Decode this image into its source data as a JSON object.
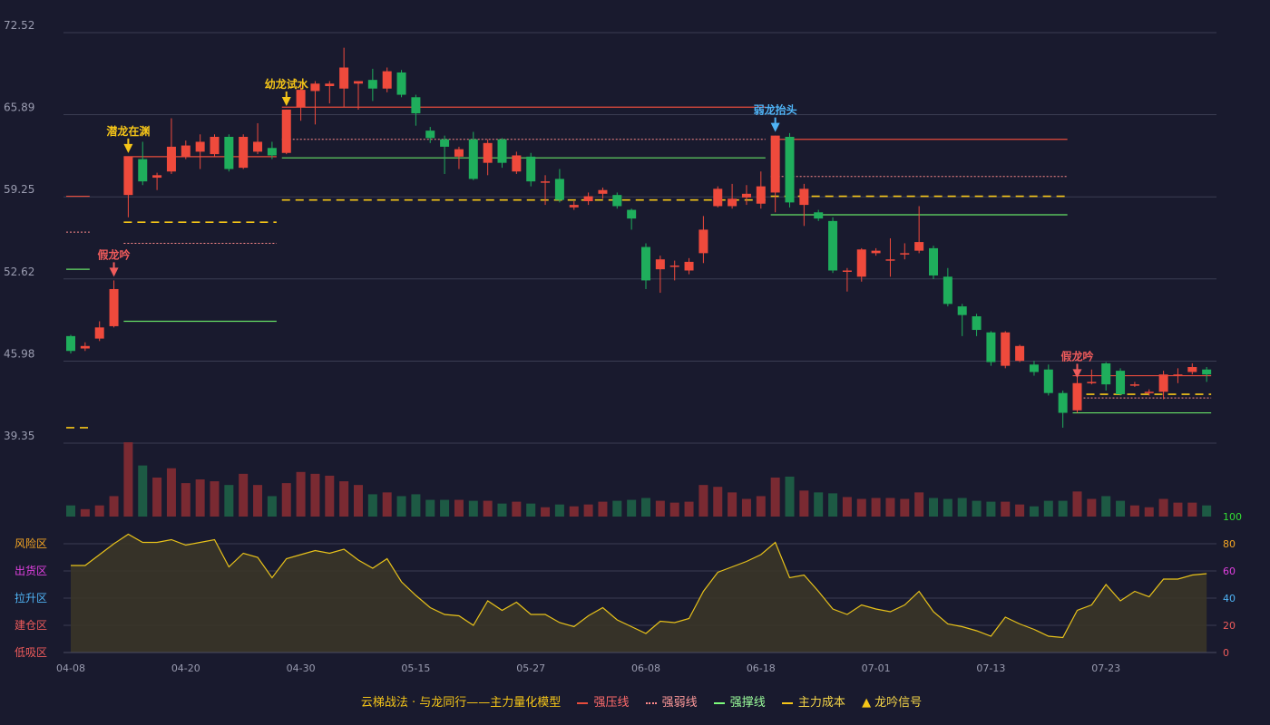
{
  "legend": {
    "title": "云梯战法 · 与龙同行——主力量化模型",
    "items": [
      {
        "label": "强压线",
        "color": "#e74c3c",
        "style": "solid"
      },
      {
        "label": "强弱线",
        "color": "#ff8a8a",
        "style": "dotted"
      },
      {
        "label": "强撑线",
        "color": "#7cfc7c",
        "style": "solid"
      },
      {
        "label": "主力成本",
        "color": "#f5c518",
        "style": "dashed"
      },
      {
        "label": "龙吟信号",
        "color": "#f5c518",
        "style": "triangle"
      }
    ]
  },
  "chart_data": {
    "type": "candlestick",
    "price_axis": {
      "ticks": [
        "72.52",
        "65.89",
        "59.25",
        "52.62",
        "45.98",
        "39.35"
      ],
      "ylim": [
        39.35,
        72.52
      ]
    },
    "x_ticks": [
      {
        "i": 0,
        "label": "04-08"
      },
      {
        "i": 8,
        "label": "04-20"
      },
      {
        "i": 16,
        "label": "04-30"
      },
      {
        "i": 24,
        "label": "05-15"
      },
      {
        "i": 32,
        "label": "05-27"
      },
      {
        "i": 40,
        "label": "06-08"
      },
      {
        "i": 48,
        "label": "06-18"
      },
      {
        "i": 56,
        "label": "07-01"
      },
      {
        "i": 64,
        "label": "07-13"
      },
      {
        "i": 72,
        "label": "07-23"
      }
    ],
    "candles": [
      [
        48.0,
        46.8,
        46.6,
        48.1
      ],
      [
        47.0,
        47.2,
        46.8,
        47.5
      ],
      [
        47.8,
        48.7,
        47.6,
        49.2
      ],
      [
        48.8,
        51.8,
        48.7,
        52.5
      ],
      [
        59.4,
        62.5,
        57.6,
        62.5
      ],
      [
        62.3,
        60.5,
        60.2,
        63.7
      ],
      [
        60.8,
        61.0,
        59.8,
        61.2
      ],
      [
        61.3,
        63.3,
        61.1,
        65.6
      ],
      [
        62.5,
        63.4,
        62.3,
        63.8
      ],
      [
        62.9,
        63.7,
        61.5,
        64.3
      ],
      [
        62.7,
        64.1,
        62.5,
        64.3
      ],
      [
        64.1,
        61.5,
        61.3,
        64.3
      ],
      [
        61.6,
        64.1,
        61.5,
        64.3
      ],
      [
        62.9,
        63.7,
        62.7,
        65.2
      ],
      [
        63.2,
        62.6,
        62.3,
        63.7
      ],
      [
        62.8,
        66.3,
        62.7,
        66.3
      ],
      [
        66.5,
        67.9,
        65.4,
        68.3
      ],
      [
        67.8,
        68.4,
        65.1,
        68.6
      ],
      [
        68.2,
        68.4,
        66.8,
        68.6
      ],
      [
        68.0,
        69.7,
        66.5,
        71.3
      ],
      [
        68.4,
        68.6,
        66.3,
        68.6
      ],
      [
        68.7,
        68.0,
        67.0,
        69.6
      ],
      [
        68.0,
        69.4,
        67.7,
        69.7
      ],
      [
        69.3,
        67.5,
        67.3,
        69.5
      ],
      [
        67.3,
        66.0,
        65.0,
        67.5
      ],
      [
        64.6,
        64.0,
        63.6,
        64.9
      ],
      [
        63.9,
        63.3,
        61.1,
        64.2
      ],
      [
        62.5,
        63.1,
        61.5,
        63.3
      ],
      [
        63.9,
        60.7,
        60.6,
        64.5
      ],
      [
        62.0,
        63.6,
        61.0,
        63.9
      ],
      [
        63.9,
        62.0,
        61.6,
        64.0
      ],
      [
        61.3,
        62.6,
        61.1,
        62.9
      ],
      [
        62.5,
        60.5,
        60.1,
        62.8
      ],
      [
        60.5,
        60.5,
        58.6,
        61.0
      ],
      [
        60.7,
        59.0,
        58.8,
        61.5
      ],
      [
        58.4,
        58.6,
        58.2,
        58.9
      ],
      [
        58.9,
        59.3,
        58.6,
        59.6
      ],
      [
        59.5,
        59.8,
        59.1,
        60.0
      ],
      [
        59.4,
        58.5,
        58.3,
        59.6
      ],
      [
        58.2,
        57.5,
        56.6,
        58.3
      ],
      [
        55.2,
        52.5,
        51.8,
        55.5
      ],
      [
        53.4,
        54.2,
        51.5,
        54.5
      ],
      [
        53.7,
        53.7,
        52.5,
        54.1
      ],
      [
        53.3,
        54.0,
        53.0,
        54.3
      ],
      [
        54.7,
        56.6,
        53.9,
        57.7
      ],
      [
        58.5,
        59.9,
        58.4,
        60.1
      ],
      [
        58.5,
        59.1,
        58.3,
        60.3
      ],
      [
        59.2,
        59.5,
        58.6,
        60.2
      ],
      [
        58.7,
        60.1,
        58.3,
        61.3
      ],
      [
        59.6,
        64.2,
        58.0,
        64.2
      ],
      [
        64.1,
        58.8,
        58.4,
        64.4
      ],
      [
        58.6,
        59.9,
        56.9,
        60.3
      ],
      [
        58.0,
        57.5,
        57.3,
        58.2
      ],
      [
        57.3,
        53.3,
        53.1,
        57.6
      ],
      [
        53.2,
        53.3,
        51.6,
        53.5
      ],
      [
        52.8,
        55.0,
        52.4,
        55.1
      ],
      [
        54.7,
        54.9,
        54.5,
        55.1
      ],
      [
        54.2,
        54.2,
        52.8,
        55.9
      ],
      [
        54.7,
        54.7,
        54.2,
        55.5
      ],
      [
        54.9,
        55.6,
        54.7,
        58.5
      ],
      [
        55.1,
        52.9,
        52.6,
        55.3
      ],
      [
        52.8,
        50.6,
        50.4,
        53.5
      ],
      [
        50.4,
        49.7,
        48.0,
        50.6
      ],
      [
        49.6,
        48.5,
        48.0,
        49.8
      ],
      [
        48.3,
        45.9,
        45.6,
        48.4
      ],
      [
        45.6,
        48.3,
        45.4,
        48.4
      ],
      [
        46.0,
        47.2,
        45.9,
        47.3
      ],
      [
        45.7,
        45.1,
        44.8,
        46.0
      ],
      [
        45.3,
        43.4,
        43.2,
        45.7
      ],
      [
        43.4,
        41.8,
        40.6,
        43.6
      ],
      [
        42.0,
        44.2,
        41.8,
        44.8
      ],
      [
        44.3,
        44.3,
        44.1,
        45.3
      ],
      [
        45.8,
        44.1,
        43.6,
        45.9
      ],
      [
        45.2,
        43.3,
        43.2,
        45.4
      ],
      [
        44.1,
        44.1,
        43.9,
        44.3
      ],
      [
        43.5,
        43.5,
        43.2,
        43.7
      ],
      [
        43.5,
        44.9,
        42.9,
        45.2
      ],
      [
        44.9,
        44.9,
        44.2,
        45.4
      ],
      [
        45.1,
        45.5,
        44.9,
        45.8
      ],
      [
        45.3,
        44.9,
        44.3,
        45.5
      ]
    ],
    "volume": [
      12,
      8,
      12,
      22,
      80,
      55,
      42,
      52,
      36,
      40,
      38,
      34,
      46,
      34,
      22,
      36,
      48,
      46,
      44,
      38,
      34,
      24,
      26,
      22,
      24,
      18,
      18,
      18,
      17,
      17,
      14,
      16,
      14,
      10,
      13,
      11,
      13,
      16,
      17,
      18,
      20,
      17,
      15,
      16,
      34,
      32,
      26,
      19,
      22,
      42,
      43,
      28,
      26,
      25,
      21,
      19,
      20,
      20,
      19,
      26,
      20,
      19,
      20,
      17,
      16,
      16,
      13,
      11,
      17,
      17,
      27,
      19,
      22,
      17,
      12,
      10,
      19,
      15,
      15,
      12
    ],
    "lines": [
      {
        "type": "strong_pressure",
        "segments": [
          [
            0,
            1,
            59.3
          ],
          [
            4,
            14,
            62.5
          ],
          [
            15,
            48,
            66.5
          ],
          [
            49,
            69,
            63.9
          ],
          [
            70,
            79,
            44.8
          ]
        ]
      },
      {
        "type": "weak_strong",
        "segments": [
          [
            0,
            1,
            56.4
          ],
          [
            4,
            14,
            55.5
          ],
          [
            15,
            48,
            63.9
          ],
          [
            49,
            69,
            60.9
          ],
          [
            70,
            79,
            43.0
          ]
        ]
      },
      {
        "type": "strong_support",
        "segments": [
          [
            0,
            1,
            53.4
          ],
          [
            4,
            14,
            49.2
          ],
          [
            15,
            48,
            62.4
          ],
          [
            49,
            69,
            57.8
          ],
          [
            70,
            79,
            41.8
          ]
        ]
      },
      {
        "type": "main_cost",
        "segments": [
          [
            0,
            1,
            40.6
          ],
          [
            4,
            14,
            57.2
          ],
          [
            15,
            48,
            59.0
          ],
          [
            49,
            69,
            59.3
          ],
          [
            70,
            79,
            43.3
          ]
        ]
      }
    ],
    "signals": [
      {
        "i": 3,
        "label": "假龙吟",
        "color": "#ef5b5b",
        "pos": "above",
        "price": 52.5
      },
      {
        "i": 4,
        "label": "潜龙在渊",
        "color": "#f5c518",
        "pos": "above",
        "price": 62.5
      },
      {
        "i": 15,
        "label": "幼龙试水",
        "color": "#f5c518",
        "pos": "above",
        "price": 66.3
      },
      {
        "i": 49,
        "label": "弱龙抬头",
        "color": "#4fb3f5",
        "pos": "above",
        "price": 64.2
      },
      {
        "i": 70,
        "label": "假龙吟",
        "color": "#ef5b5b",
        "pos": "above",
        "price": 44.3
      }
    ],
    "indicator": {
      "ylim": [
        0,
        100
      ],
      "ticks": [
        "100",
        "80",
        "60",
        "40",
        "20",
        "0"
      ],
      "tick_colors": [
        "#33dd33",
        "#f5a623",
        "#e040e0",
        "#4fb3f5",
        "#ef5b5b",
        "#ef5b5b"
      ],
      "zones": [
        {
          "label": "风险区",
          "color": "#f5a623",
          "value": 80
        },
        {
          "label": "出货区",
          "color": "#e040e0",
          "value": 60
        },
        {
          "label": "拉升区",
          "color": "#4fb3f5",
          "value": 40
        },
        {
          "label": "建仓区",
          "color": "#ef5b5b",
          "value": 20
        },
        {
          "label": "低吸区",
          "color": "#ef5b5b",
          "value": 0
        }
      ],
      "values": [
        64,
        64,
        72,
        80,
        87,
        81,
        81,
        83,
        79,
        81,
        83,
        63,
        73,
        70,
        55,
        69,
        72,
        75,
        73,
        76,
        68,
        62,
        69,
        52,
        42,
        33,
        28,
        27,
        20,
        38,
        31,
        37,
        28,
        28,
        22,
        19,
        27,
        33,
        24,
        19,
        14,
        23,
        22,
        25,
        45,
        59,
        63,
        67,
        72,
        81,
        55,
        57,
        45,
        32,
        28,
        35,
        32,
        30,
        35,
        45,
        30,
        21,
        19,
        16,
        12,
        26,
        21,
        17,
        12,
        11,
        31,
        35,
        50,
        38,
        45,
        41,
        54,
        54,
        57,
        58
      ]
    }
  }
}
